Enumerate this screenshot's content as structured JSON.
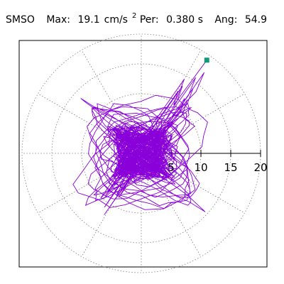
{
  "header": {
    "station": "SMSO",
    "max_label": "Max:",
    "max_value": "19.1",
    "max_unit": "cm/s",
    "max_unit_exp": "2",
    "per_label": "Per:",
    "per_value": "0.380 s",
    "ang_label": "Ang:",
    "ang_value": "54.9"
  },
  "chart_data": {
    "type": "scatter",
    "title": "SMSO  Max: 19.1 cm/s2  Per: 0.380 s  Ang: 54.9",
    "projection": "polar",
    "r_ticks": [
      5,
      10,
      15,
      20
    ],
    "r_max": 20,
    "grid": true,
    "spoke_angles_deg": [
      0,
      30,
      60,
      90,
      120,
      150,
      180,
      210,
      240,
      270,
      300,
      330
    ],
    "peak": {
      "radius": 19.1,
      "angle_deg": 54.9
    },
    "series": [
      {
        "color": "#8a00d8"
      }
    ],
    "marker_color": "#0f9a7a"
  }
}
